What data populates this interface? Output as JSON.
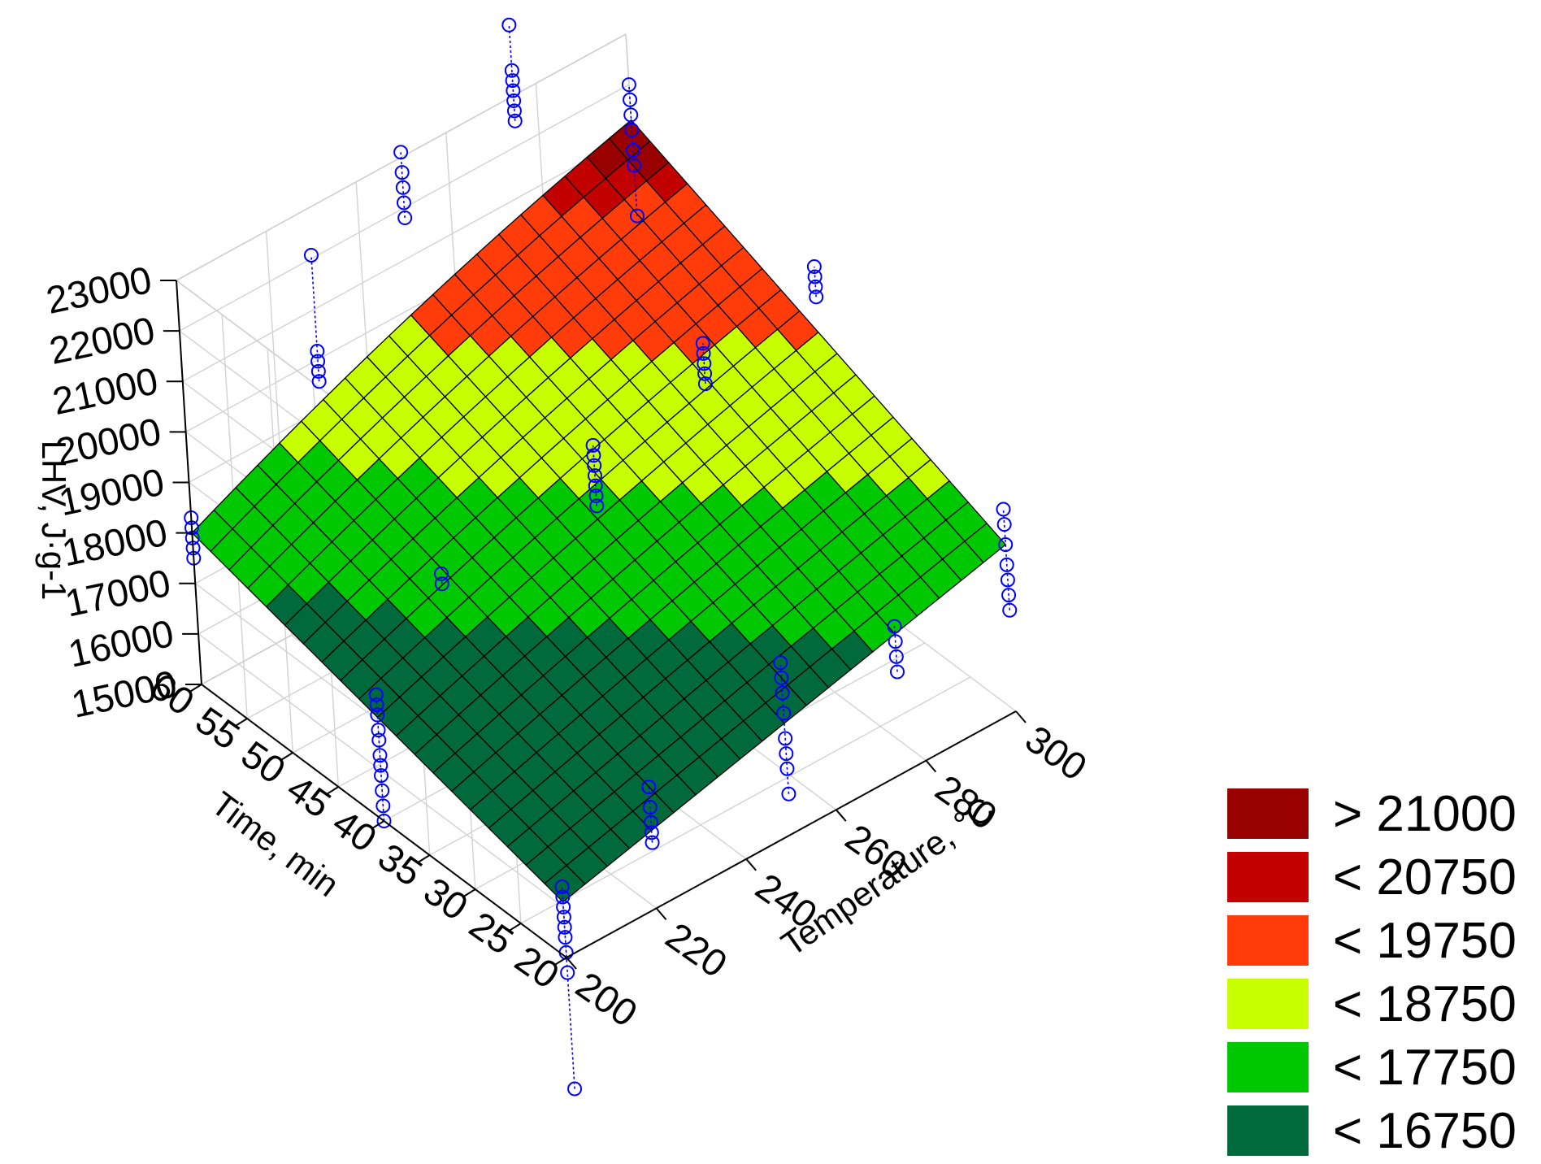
{
  "chart_data": {
    "type": "surface3d",
    "zlabel": "LHV, J·g-1",
    "ylabel": "Time, min",
    "xlabel": "Temperature, °C",
    "x_ticks": [
      200,
      220,
      240,
      260,
      280,
      300
    ],
    "y_ticks": [
      20,
      25,
      30,
      35,
      40,
      45,
      50,
      55,
      60
    ],
    "z_ticks": [
      15000,
      16000,
      17000,
      18000,
      19000,
      20000,
      21000,
      22000,
      23000
    ],
    "xlim": [
      200,
      300
    ],
    "ylim": [
      20,
      60
    ],
    "zlim": [
      15000,
      23000
    ],
    "surface_corners": [
      {
        "x": 200,
        "y": 20,
        "z": 16100
      },
      {
        "x": 300,
        "y": 20,
        "z": 18300
      },
      {
        "x": 200,
        "y": 60,
        "z": 18000
      },
      {
        "x": 300,
        "y": 60,
        "z": 21300
      }
    ],
    "surface_grid_steps": 20,
    "observations": [
      {
        "x": 200,
        "y": 20,
        "z": [
          12400,
          14700,
          15100,
          15400,
          15600,
          15800,
          16000,
          16200,
          16400
        ]
      },
      {
        "x": 200,
        "y": 40,
        "z": [
          15000,
          15300,
          15600,
          15900,
          16100,
          16300,
          16600,
          16800,
          17100,
          17300,
          17500
        ]
      },
      {
        "x": 200,
        "y": 60,
        "z": [
          17500,
          17700,
          17900,
          18100,
          18300
        ]
      },
      {
        "x": 220,
        "y": 20,
        "z": [
          16300,
          16500,
          16700,
          17000,
          17400
        ]
      },
      {
        "x": 225,
        "y": 45,
        "z": [
          17800,
          18000
        ]
      },
      {
        "x": 220,
        "y": 55,
        "z": [
          20700,
          20900,
          21100,
          21300,
          23200
        ]
      },
      {
        "x": 250,
        "y": 20,
        "z": [
          15800,
          16300,
          16600,
          16900,
          17400,
          17800,
          18100,
          18400
        ]
      },
      {
        "x": 250,
        "y": 40,
        "z": [
          18800,
          19000,
          19200,
          19400,
          19600,
          19800,
          20000
        ]
      },
      {
        "x": 250,
        "y": 60,
        "z": [
          21800,
          22100,
          22400,
          22700,
          23100
        ]
      },
      {
        "x": 275,
        "y": 20,
        "z": [
          17000,
          17300,
          17600,
          17900
        ]
      },
      {
        "x": 275,
        "y": 40,
        "z": [
          20000,
          20200,
          20400,
          20600,
          20800
        ]
      },
      {
        "x": 275,
        "y": 60,
        "z": [
          22500,
          22700,
          22900,
          23100,
          23300,
          23500,
          24400
        ]
      },
      {
        "x": 300,
        "y": 20,
        "z": [
          17000,
          17300,
          17600,
          17900,
          18300,
          18700,
          19000
        ]
      },
      {
        "x": 300,
        "y": 40,
        "z": [
          20500,
          20700,
          20900,
          21100
        ]
      },
      {
        "x": 300,
        "y": 60,
        "z": [
          19400,
          20400,
          20700,
          21100,
          21400,
          21700,
          22000
        ]
      }
    ],
    "legend": [
      {
        "label": "> 21000",
        "color": "#990000"
      },
      {
        "label": "< 20750",
        "color": "#c30000"
      },
      {
        "label": "< 19750",
        "color": "#ff3c0a"
      },
      {
        "label": "< 18750",
        "color": "#c8ff00"
      },
      {
        "label": "< 17750",
        "color": "#00c800"
      },
      {
        "label": "< 16750",
        "color": "#006a3c"
      }
    ],
    "contour_levels": [
      16750,
      17750,
      18750,
      19750,
      20750,
      21000
    ],
    "colors": {
      "points": "#0000ff",
      "mesh": "#000000",
      "grid": "#d2d2d2",
      "box": "#000000"
    }
  }
}
